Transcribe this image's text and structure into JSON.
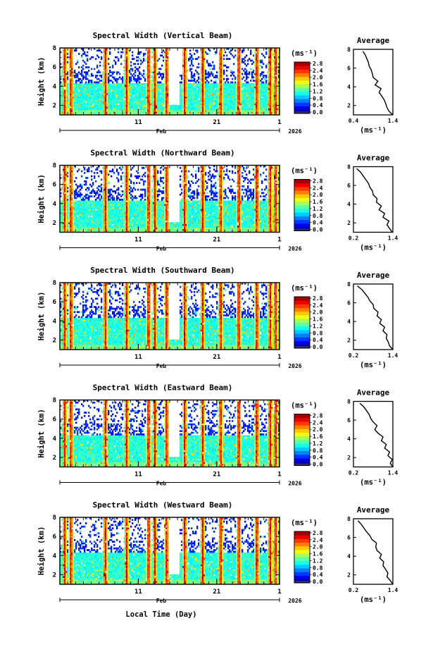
{
  "figure": {
    "xlabel_bottom": "Local Time (Day)"
  },
  "chart_data": [
    {
      "type": "heatmap",
      "title": "Spectral Width (Vertical Beam)",
      "ylabel": "Height (km)",
      "xlabel": "Feb",
      "year": "2026",
      "ylim": [
        1,
        8
      ],
      "yticks": [
        "2",
        "4",
        "6",
        "8"
      ],
      "xticks": [
        "11",
        "21",
        "1"
      ],
      "colorbar": {
        "unit": "(ms⁻¹)",
        "range": [
          0,
          2.8
        ],
        "ticks": [
          "2.8",
          "2.4",
          "2.0",
          "1.6",
          "1.2",
          "0.8",
          "0.4",
          "0.0"
        ]
      },
      "average": {
        "title": "Average",
        "unit": "(ms⁻¹)",
        "xlim": [
          0.4,
          1.4
        ],
        "xticks": [
          "0.4",
          "1.4"
        ],
        "yticks": [
          "2",
          "4",
          "6",
          "8"
        ],
        "heights": [
          1.0,
          1.4,
          1.8,
          2.2,
          2.6,
          3.0,
          3.4,
          3.8,
          4.2,
          4.6,
          5.0,
          5.4,
          5.8,
          6.2,
          6.6,
          7.0,
          7.4,
          7.8
        ],
        "values": [
          1.4,
          1.3,
          1.25,
          1.22,
          1.18,
          1.12,
          1.05,
          1.1,
          0.95,
          1.02,
          0.9,
          0.88,
          0.85,
          0.8,
          0.78,
          0.74,
          0.7,
          0.64
        ]
      }
    },
    {
      "type": "heatmap",
      "title": "Spectral Width (Northward Beam)",
      "ylabel": "Height (km)",
      "xlabel": "Feb",
      "year": "2026",
      "ylim": [
        1,
        8
      ],
      "yticks": [
        "2",
        "4",
        "6",
        "8"
      ],
      "xticks": [
        "11",
        "21",
        "1"
      ],
      "colorbar": {
        "unit": "(ms⁻¹)",
        "range": [
          0,
          2.8
        ],
        "ticks": [
          "2.8",
          "2.4",
          "2.0",
          "1.6",
          "1.2",
          "0.8",
          "0.4",
          "0.0"
        ]
      },
      "average": {
        "title": "Average",
        "unit": "(ms⁻¹)",
        "xlim": [
          0.2,
          1.4
        ],
        "xticks": [
          "0.2",
          "1.4"
        ],
        "yticks": [
          "2",
          "4",
          "6",
          "8"
        ],
        "heights": [
          1.0,
          1.4,
          1.8,
          2.2,
          2.6,
          3.0,
          3.4,
          3.8,
          4.2,
          4.6,
          5.0,
          5.4,
          5.8,
          6.2,
          6.6,
          7.0,
          7.4,
          7.8
        ],
        "values": [
          1.38,
          1.3,
          1.22,
          1.28,
          1.1,
          1.15,
          0.98,
          1.05,
          0.9,
          0.92,
          0.8,
          0.78,
          0.7,
          0.66,
          0.58,
          0.5,
          0.42,
          0.3
        ]
      }
    },
    {
      "type": "heatmap",
      "title": "Spectral Width (Southward Beam)",
      "ylabel": "Height (km)",
      "xlabel": "Feb",
      "year": "2026",
      "ylim": [
        1,
        8
      ],
      "yticks": [
        "2",
        "4",
        "6",
        "8"
      ],
      "xticks": [
        "11",
        "21",
        "1"
      ],
      "colorbar": {
        "unit": "(ms⁻¹)",
        "range": [
          0,
          2.8
        ],
        "ticks": [
          "2.8",
          "2.4",
          "2.0",
          "1.6",
          "1.2",
          "0.8",
          "0.4",
          "0.0"
        ]
      },
      "average": {
        "title": "Average",
        "unit": "(ms⁻¹)",
        "xlim": [
          0.2,
          1.4
        ],
        "xticks": [
          "0.2",
          "1.4"
        ],
        "yticks": [
          "2",
          "4",
          "6",
          "8"
        ],
        "heights": [
          1.0,
          1.4,
          1.8,
          2.2,
          2.6,
          3.0,
          3.4,
          3.8,
          4.2,
          4.6,
          5.0,
          5.4,
          5.8,
          6.2,
          6.6,
          7.0,
          7.4,
          7.8
        ],
        "values": [
          1.4,
          1.3,
          1.26,
          1.2,
          1.22,
          1.1,
          1.15,
          1.0,
          1.05,
          0.92,
          0.95,
          0.82,
          0.8,
          0.7,
          0.64,
          0.55,
          0.46,
          0.32
        ]
      }
    },
    {
      "type": "heatmap",
      "title": "Spectral Width (Eastward Beam)",
      "ylabel": "Height (km)",
      "xlabel": "Feb",
      "year": "2026",
      "ylim": [
        1,
        8
      ],
      "yticks": [
        "2",
        "4",
        "6",
        "8"
      ],
      "xticks": [
        "11",
        "21",
        "1"
      ],
      "colorbar": {
        "unit": "(ms⁻¹)",
        "range": [
          0,
          2.8
        ],
        "ticks": [
          "2.8",
          "2.4",
          "2.0",
          "1.6",
          "1.2",
          "0.8",
          "0.4",
          "0.0"
        ]
      },
      "average": {
        "title": "Average",
        "unit": "(ms⁻¹)",
        "xlim": [
          0.2,
          1.4
        ],
        "xticks": [
          "0.2",
          "1.4"
        ],
        "yticks": [
          "2",
          "4",
          "6",
          "8"
        ],
        "heights": [
          1.0,
          1.4,
          1.8,
          2.2,
          2.6,
          3.0,
          3.4,
          3.8,
          4.2,
          4.6,
          5.0,
          5.4,
          5.8,
          6.2,
          6.6,
          7.0,
          7.4,
          7.8
        ],
        "values": [
          1.4,
          1.32,
          1.38,
          1.25,
          1.3,
          1.15,
          1.2,
          1.05,
          1.1,
          0.95,
          0.85,
          0.92,
          0.8,
          0.72,
          0.68,
          0.6,
          0.52,
          0.4
        ]
      }
    },
    {
      "type": "heatmap",
      "title": "Spectral Width (Westward Beam)",
      "ylabel": "Height (km)",
      "xlabel": "Feb",
      "year": "2026",
      "ylim": [
        1,
        8
      ],
      "yticks": [
        "2",
        "4",
        "6",
        "8"
      ],
      "xticks": [
        "11",
        "21",
        "1"
      ],
      "colorbar": {
        "unit": "(ms⁻¹)",
        "range": [
          0,
          2.8
        ],
        "ticks": [
          "2.8",
          "2.4",
          "2.0",
          "1.6",
          "1.2",
          "0.8",
          "0.4",
          "0.0"
        ]
      },
      "average": {
        "title": "Average",
        "unit": "(ms⁻¹)",
        "xlim": [
          0.2,
          1.4
        ],
        "xticks": [
          "0.2",
          "1.4"
        ],
        "yticks": [
          "2",
          "4",
          "6",
          "8"
        ],
        "heights": [
          1.0,
          1.4,
          1.8,
          2.2,
          2.6,
          3.0,
          3.4,
          3.8,
          4.2,
          4.6,
          5.0,
          5.4,
          5.8,
          6.2,
          6.6,
          7.0,
          7.4,
          7.8
        ],
        "values": [
          1.4,
          1.32,
          1.22,
          1.25,
          1.18,
          1.1,
          1.12,
          1.0,
          1.05,
          0.92,
          0.88,
          0.9,
          0.76,
          0.7,
          0.6,
          0.52,
          0.44,
          0.34
        ]
      }
    }
  ]
}
